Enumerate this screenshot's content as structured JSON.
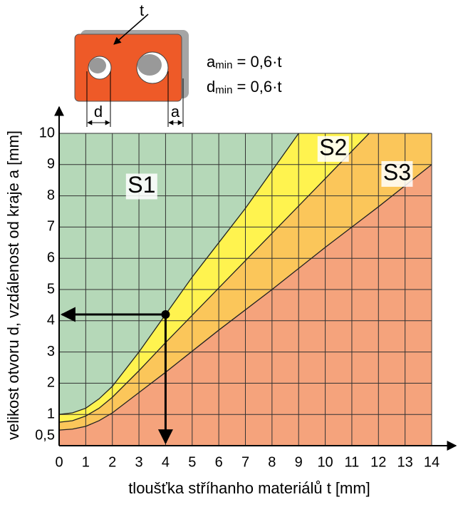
{
  "diagram": {
    "thickness_label": "t",
    "d_label": "d",
    "a_label": "a",
    "formulas": [
      {
        "symbol": "a",
        "subscript": "min",
        "expr": " = 0,6·t"
      },
      {
        "symbol": "d",
        "subscript": "min",
        "expr": " = 0,6·t"
      }
    ]
  },
  "chart_data": {
    "type": "area",
    "xlabel": "tloušťka stříhanho materiálů  t [mm]",
    "ylabel": "velikost otvoru d, vzdálenost od kraje a [mm]",
    "xlim": [
      0,
      14
    ],
    "ylim": [
      0,
      10
    ],
    "xticks": [
      0,
      1,
      2,
      3,
      4,
      5,
      6,
      7,
      8,
      9,
      10,
      11,
      12,
      13,
      14
    ],
    "yticks": [
      {
        "value": 0.5,
        "label": "0,5"
      },
      1,
      2,
      3,
      4,
      5,
      6,
      7,
      8,
      9,
      10
    ],
    "grid": true,
    "below_color": "#f5a37c",
    "series": [
      {
        "name": "S1",
        "color": "#b5d8b8",
        "x": [
          0,
          0.5,
          1,
          1.5,
          2,
          3,
          4,
          5,
          6,
          7,
          8,
          9
        ],
        "values": [
          1,
          1.05,
          1.2,
          1.5,
          1.9,
          3,
          4.2,
          5.4,
          6.5,
          7.6,
          8.8,
          10
        ]
      },
      {
        "name": "S2",
        "color": "#fff34f",
        "x": [
          0,
          0.5,
          1,
          1.5,
          2,
          3,
          4,
          6,
          8,
          10,
          11.65
        ],
        "values": [
          0.75,
          0.8,
          0.95,
          1.2,
          1.55,
          2.4,
          3.3,
          5.05,
          6.8,
          8.55,
          10
        ]
      },
      {
        "name": "S3",
        "color": "#fbc65a",
        "x": [
          0,
          0.5,
          1,
          1.5,
          2,
          3,
          4,
          6,
          8,
          10,
          12,
          14
        ],
        "values": [
          0.5,
          0.53,
          0.62,
          0.8,
          1.05,
          1.7,
          2.35,
          3.7,
          5.0,
          6.35,
          7.65,
          9
        ]
      }
    ],
    "marker": {
      "x": 4,
      "y": 4.2
    }
  }
}
